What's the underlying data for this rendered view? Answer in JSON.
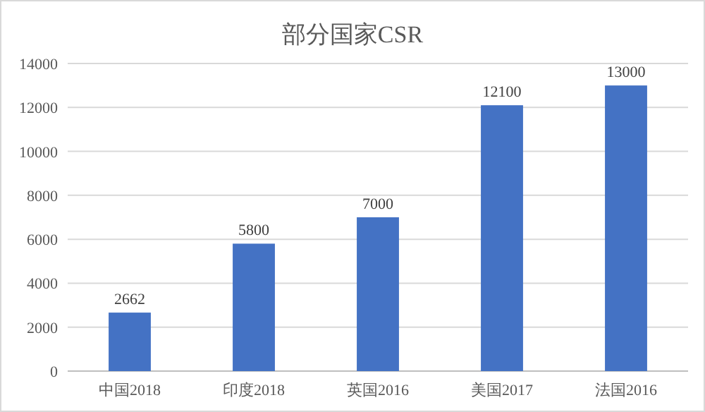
{
  "chart_data": {
    "type": "bar",
    "title": "部分国家CSR",
    "categories": [
      "中国2018",
      "印度2018",
      "英国2016",
      "美国2017",
      "法国2016"
    ],
    "values": [
      2662,
      5800,
      7000,
      12100,
      13000
    ],
    "color": "#4472c4",
    "ylim": [
      0,
      14000
    ],
    "yticks": [
      0,
      2000,
      4000,
      6000,
      8000,
      10000,
      12000,
      14000
    ],
    "grid": "y",
    "data_labels": true
  }
}
